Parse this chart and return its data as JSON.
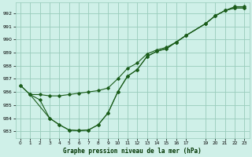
{
  "title": "Graphe pression niveau de la mer (hPa)",
  "bg_color": "#cff0e8",
  "grid_color": "#99ccbb",
  "line_color": "#1a5c1a",
  "marker_color": "#1a5c1a",
  "xlim": [
    -0.5,
    23.5
  ],
  "ylim": [
    982.5,
    992.8
  ],
  "yticks": [
    983,
    984,
    985,
    986,
    987,
    988,
    989,
    990,
    991,
    992
  ],
  "xticks": [
    0,
    1,
    2,
    3,
    4,
    5,
    6,
    7,
    8,
    9,
    10,
    11,
    12,
    13,
    14,
    15,
    16,
    17,
    19,
    20,
    21,
    22,
    23
  ],
  "series1_x": [
    0,
    1,
    2,
    3,
    4,
    5,
    6,
    7,
    8,
    9,
    10,
    11,
    12,
    13,
    14,
    15,
    16,
    17,
    19,
    20,
    21,
    22,
    23
  ],
  "series1_y": [
    986.5,
    985.8,
    985.8,
    985.7,
    985.7,
    985.8,
    985.9,
    986.0,
    986.1,
    986.3,
    987.0,
    987.8,
    988.2,
    988.9,
    989.2,
    989.4,
    989.8,
    990.3,
    991.2,
    991.8,
    992.2,
    992.5,
    992.5
  ],
  "series2_x": [
    0,
    1,
    2,
    3,
    4,
    5,
    6,
    7,
    8,
    9,
    10,
    11,
    12,
    13,
    14,
    15,
    16,
    17,
    19,
    20,
    21,
    22,
    23
  ],
  "series2_y": [
    986.5,
    985.8,
    985.4,
    984.0,
    983.5,
    983.1,
    983.05,
    983.1,
    983.5,
    984.4,
    986.0,
    987.2,
    987.7,
    988.7,
    989.1,
    989.3,
    989.8,
    990.3,
    991.2,
    991.8,
    992.2,
    992.4,
    992.4
  ],
  "series3_x": [
    1,
    3,
    4,
    5,
    6,
    7,
    8,
    9,
    10,
    11,
    12,
    13,
    14,
    15,
    16,
    17,
    19,
    20,
    21,
    22,
    23
  ],
  "series3_y": [
    985.8,
    984.0,
    983.5,
    983.1,
    983.05,
    983.1,
    983.5,
    984.4,
    986.0,
    987.2,
    987.7,
    988.7,
    989.1,
    989.3,
    989.8,
    990.3,
    991.2,
    991.8,
    992.2,
    992.4,
    992.4
  ]
}
